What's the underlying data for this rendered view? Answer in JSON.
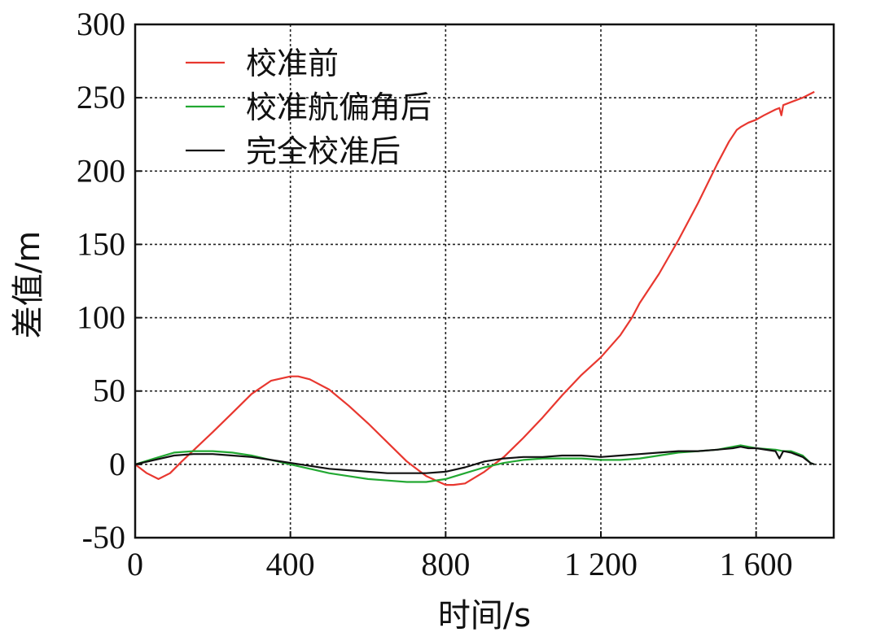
{
  "chart_data": {
    "type": "line",
    "title": "",
    "xlabel": "时间/s",
    "ylabel": "差值/m",
    "xlim": [
      0,
      1800
    ],
    "ylim": [
      -50,
      300
    ],
    "xticks": [
      0,
      400,
      800,
      1200,
      1600
    ],
    "xtick_labels": [
      "0",
      "400",
      "800",
      "1 200",
      "1 600"
    ],
    "yticks": [
      -50,
      0,
      50,
      100,
      150,
      200,
      250,
      300
    ],
    "ytick_labels": [
      "-50",
      "0",
      "50",
      "100",
      "150",
      "200",
      "250",
      "300"
    ],
    "grid": true,
    "legend": "top-left",
    "series": [
      {
        "name": "校准前",
        "color": "#e8372f",
        "x": [
          0,
          30,
          60,
          90,
          120,
          160,
          200,
          250,
          300,
          350,
          400,
          420,
          450,
          500,
          550,
          600,
          650,
          700,
          750,
          800,
          820,
          850,
          900,
          950,
          1000,
          1050,
          1100,
          1150,
          1200,
          1250,
          1280,
          1300,
          1350,
          1400,
          1450,
          1500,
          1530,
          1550,
          1560,
          1580,
          1600,
          1620,
          1650,
          1660,
          1665,
          1670,
          1700,
          1720,
          1750
        ],
        "y": [
          0,
          -6,
          -10,
          -6,
          2,
          12,
          22,
          35,
          48,
          57,
          60,
          60,
          58,
          51,
          40,
          28,
          15,
          2,
          -8,
          -14,
          -14,
          -13,
          -5,
          5,
          18,
          32,
          47,
          61,
          73,
          88,
          100,
          110,
          130,
          153,
          178,
          205,
          220,
          228,
          230,
          233,
          235,
          238,
          242,
          243,
          238,
          245,
          248,
          250,
          254
        ]
      },
      {
        "name": "校准航偏角后",
        "color": "#22a832",
        "x": [
          0,
          50,
          100,
          150,
          200,
          250,
          300,
          350,
          400,
          450,
          500,
          550,
          600,
          650,
          700,
          750,
          800,
          850,
          900,
          950,
          1000,
          1050,
          1100,
          1150,
          1200,
          1250,
          1300,
          1350,
          1400,
          1450,
          1500,
          1540,
          1560,
          1580,
          1600,
          1650,
          1670,
          1690,
          1700,
          1720,
          1740,
          1750
        ],
        "y": [
          0,
          4,
          8,
          9,
          9,
          8,
          6,
          3,
          0,
          -3,
          -6,
          -8,
          -10,
          -11,
          -12,
          -12,
          -10,
          -6,
          -2,
          1,
          3,
          4,
          4,
          4,
          3,
          3,
          4,
          6,
          8,
          9,
          10,
          12,
          13,
          12,
          11,
          10,
          9,
          9,
          8,
          6,
          1,
          0
        ]
      },
      {
        "name": "完全校准后",
        "color": "#111111",
        "x": [
          0,
          50,
          100,
          150,
          200,
          250,
          300,
          350,
          400,
          450,
          500,
          550,
          600,
          650,
          700,
          750,
          800,
          850,
          900,
          950,
          1000,
          1050,
          1100,
          1150,
          1200,
          1250,
          1300,
          1350,
          1400,
          1450,
          1500,
          1540,
          1560,
          1580,
          1600,
          1650,
          1660,
          1670,
          1690,
          1700,
          1720,
          1740,
          1750
        ],
        "y": [
          0,
          3,
          6,
          7,
          7,
          6,
          5,
          3,
          1,
          -1,
          -3,
          -4,
          -5,
          -6,
          -6,
          -6,
          -5,
          -2,
          2,
          4,
          5,
          5,
          6,
          6,
          5,
          6,
          7,
          8,
          9,
          9,
          10,
          11,
          12,
          11,
          11,
          9,
          4,
          9,
          8,
          7,
          5,
          1,
          0
        ]
      }
    ]
  }
}
